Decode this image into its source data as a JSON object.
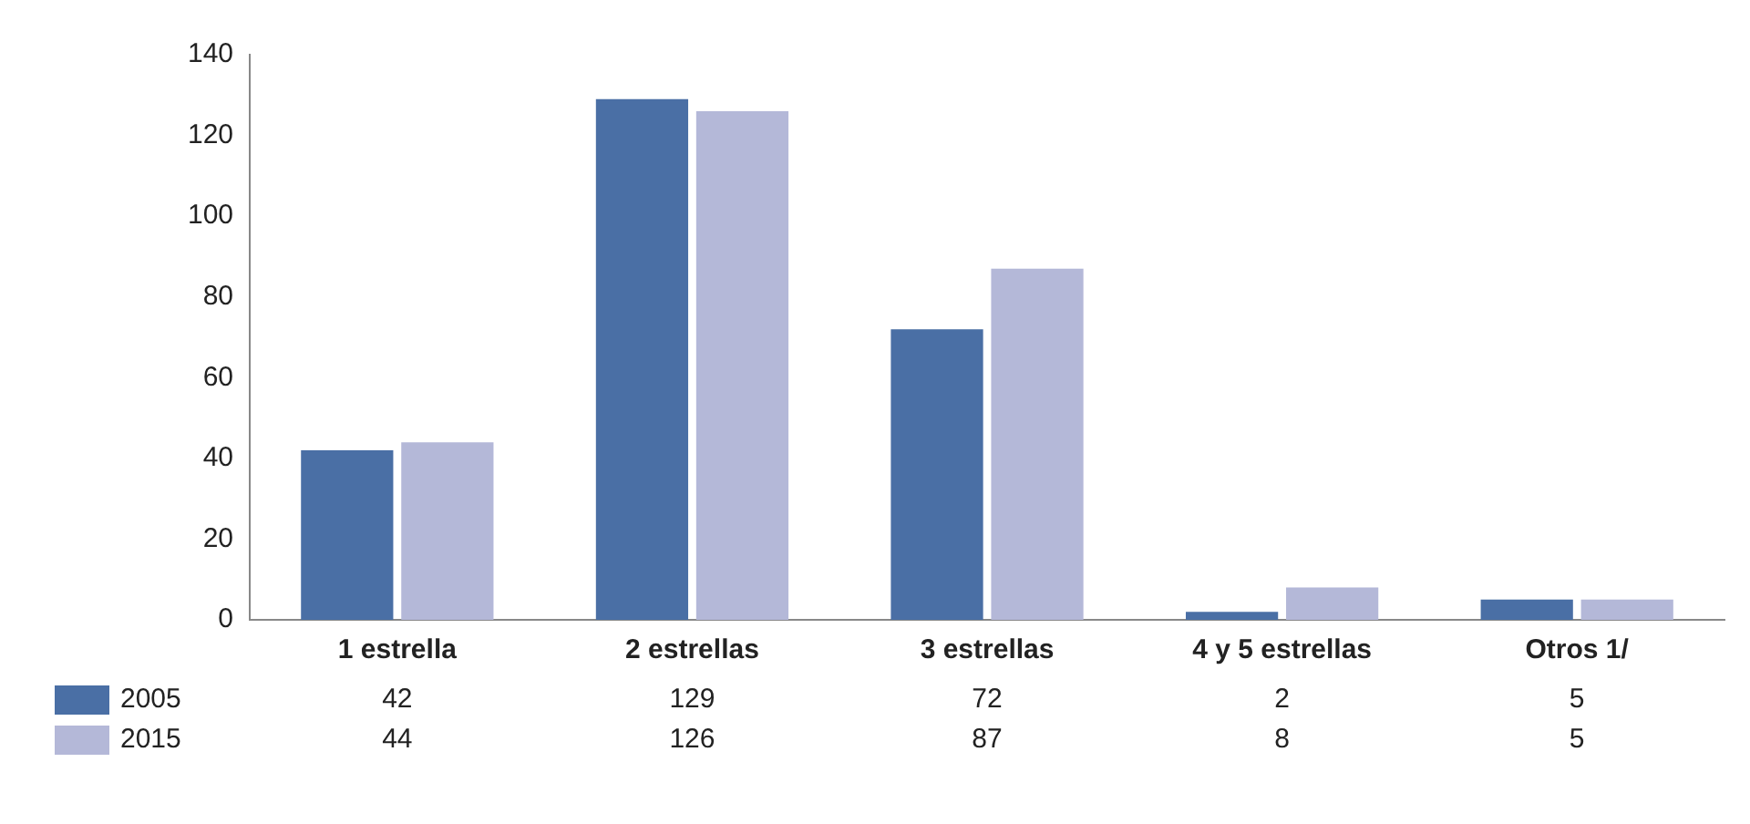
{
  "chart_data": {
    "type": "bar",
    "categories": [
      "1 estrella",
      "2 estrellas",
      "3 estrellas",
      "4 y 5 estrellas",
      "Otros 1/"
    ],
    "series": [
      {
        "name": "2005",
        "color": "#4a6fa5",
        "values": [
          42,
          129,
          72,
          2,
          5
        ]
      },
      {
        "name": "2015",
        "color": "#b4b8d8",
        "values": [
          44,
          126,
          87,
          8,
          5
        ]
      }
    ],
    "ylim": [
      0,
      140
    ],
    "yticks": [
      0,
      20,
      40,
      60,
      80,
      100,
      120,
      140
    ],
    "grid": false,
    "legend": "bottom",
    "data_labels": true
  }
}
